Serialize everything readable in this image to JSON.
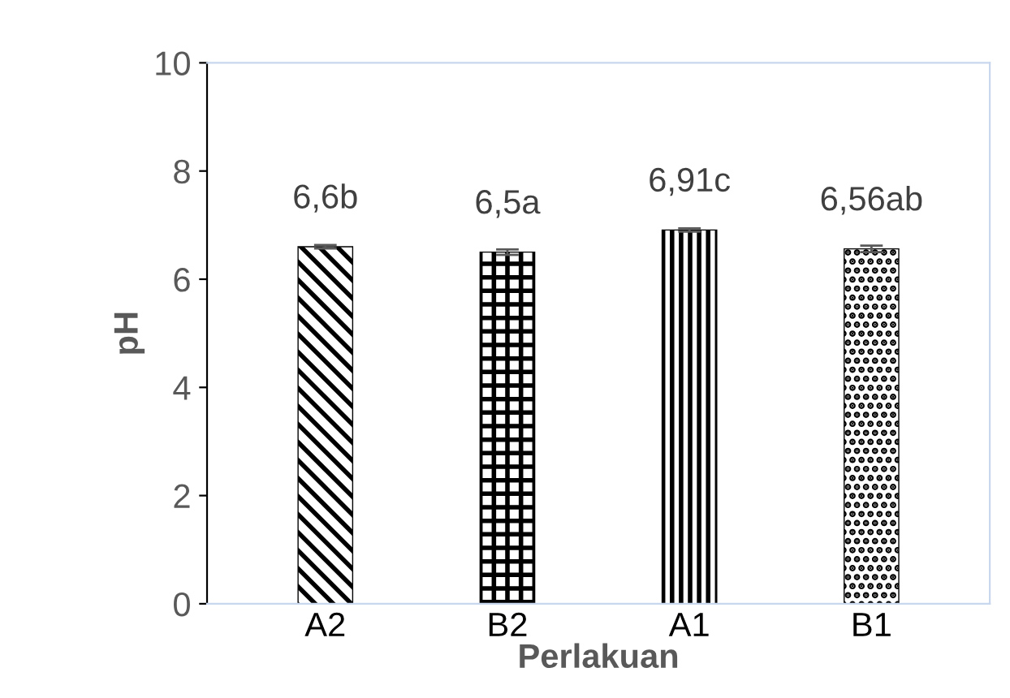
{
  "chart_data": {
    "type": "bar",
    "xlabel": "Perlakuan",
    "ylabel": "pH",
    "categories": [
      "A2",
      "B2",
      "A1",
      "B1"
    ],
    "values": [
      6.6,
      6.5,
      6.91,
      6.56
    ],
    "errors": [
      0.03,
      0.05,
      0.03,
      0.06
    ],
    "value_labels": [
      "6,6b",
      "6,5a",
      "6,91c",
      "6,56ab"
    ],
    "color": "#000000",
    "ylim": [
      0,
      10
    ],
    "yticks": [
      0,
      2,
      4,
      6,
      8,
      10
    ],
    "grid": false,
    "legend": false
  }
}
